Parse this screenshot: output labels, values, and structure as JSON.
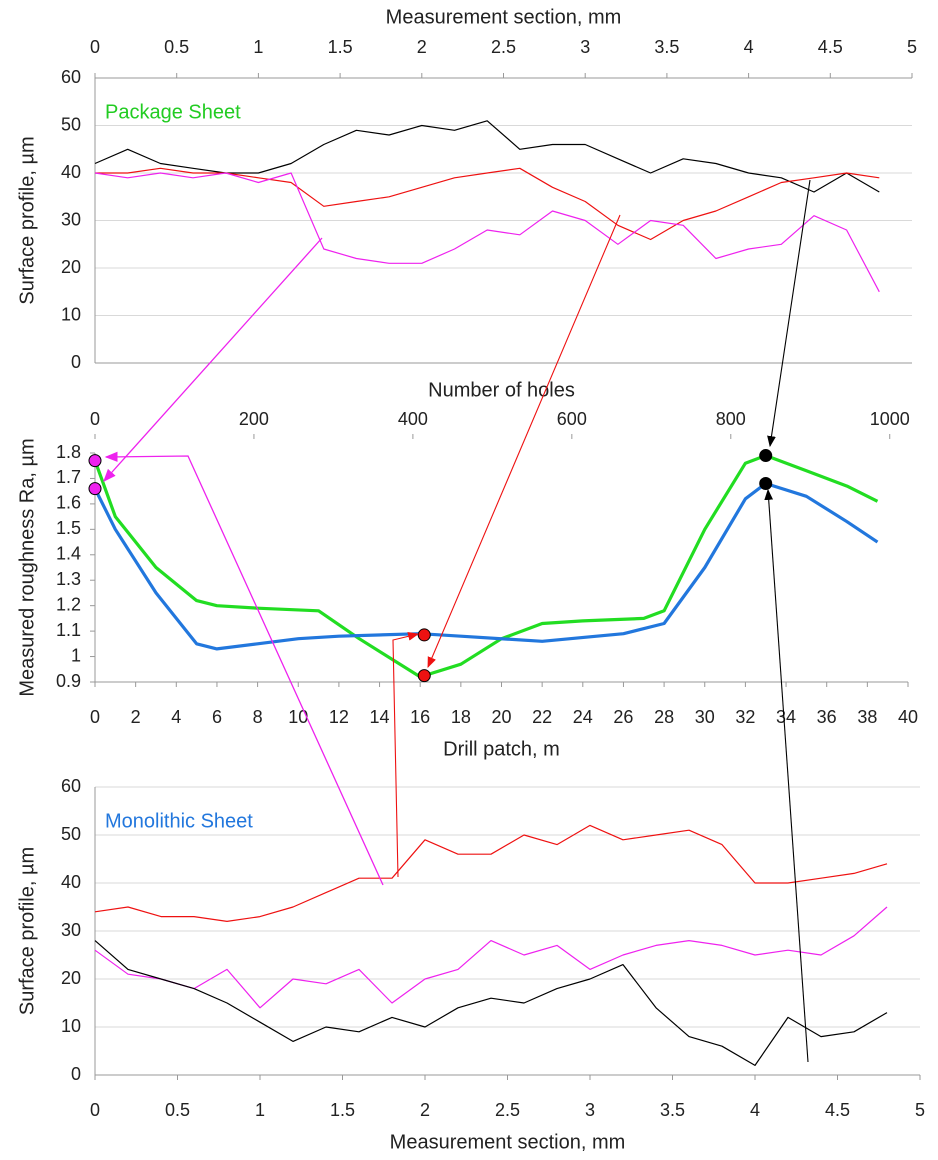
{
  "chart_data": [
    {
      "type": "line",
      "xlabel": "Measurement section, mm",
      "ylabel": "Surface profile, µm",
      "annotation": {
        "text": "Package Sheet",
        "color": "#22cc22"
      },
      "xlim": [
        0,
        5
      ],
      "xticks": [
        0,
        0.5,
        1,
        1.5,
        2,
        2.5,
        3,
        3.5,
        4,
        4.5,
        5
      ],
      "ylim": [
        0,
        60
      ],
      "yticks": [
        0,
        10,
        20,
        30,
        40,
        50,
        60
      ],
      "grid": true,
      "series": [
        {
          "color": "#000000",
          "x": [
            0,
            0.2,
            0.4,
            0.6,
            0.8,
            1,
            1.2,
            1.4,
            1.6,
            1.8,
            2,
            2.2,
            2.4,
            2.6,
            2.8,
            3,
            3.2,
            3.4,
            3.6,
            3.8,
            4,
            4.2,
            4.4,
            4.6,
            4.8
          ],
          "values": [
            42,
            45,
            42,
            41,
            40,
            40,
            42,
            46,
            49,
            48,
            50,
            49,
            51,
            45,
            46,
            46,
            43,
            40,
            43,
            42,
            40,
            39,
            36,
            40,
            36
          ]
        },
        {
          "color": "#ee1111",
          "x": [
            0,
            0.2,
            0.4,
            0.6,
            0.8,
            1,
            1.2,
            1.4,
            1.6,
            1.8,
            2,
            2.2,
            2.4,
            2.6,
            2.8,
            3,
            3.2,
            3.4,
            3.6,
            3.8,
            4,
            4.2,
            4.4,
            4.6,
            4.8
          ],
          "values": [
            40,
            40,
            41,
            40,
            40,
            39,
            38,
            33,
            34,
            35,
            37,
            39,
            40,
            41,
            37,
            34,
            29,
            26,
            30,
            32,
            35,
            38,
            39,
            40,
            39
          ]
        },
        {
          "color": "#ee22ee",
          "x": [
            0,
            0.2,
            0.4,
            0.6,
            0.8,
            1,
            1.2,
            1.4,
            1.6,
            1.8,
            2,
            2.2,
            2.4,
            2.6,
            2.8,
            3,
            3.2,
            3.4,
            3.6,
            3.8,
            4,
            4.2,
            4.4,
            4.6,
            4.8
          ],
          "values": [
            40,
            39,
            40,
            39,
            40,
            38,
            40,
            24,
            22,
            21,
            21,
            24,
            28,
            27,
            32,
            30,
            25,
            30,
            29,
            22,
            24,
            25,
            31,
            28,
            15
          ]
        }
      ]
    },
    {
      "type": "line",
      "xlabel": "Drill patch, m",
      "ylabel": "Measured roughness Ra, µm",
      "x2label": "Number of holes",
      "xlim": [
        0,
        40
      ],
      "xticks": [
        0,
        2,
        4,
        6,
        8,
        10,
        12,
        14,
        16,
        18,
        20,
        22,
        24,
        26,
        28,
        30,
        32,
        34,
        36,
        38,
        40
      ],
      "x2lim": [
        0,
        1023
      ],
      "x2ticks": [
        0,
        200,
        400,
        600,
        800,
        1000
      ],
      "ylim": [
        0.9,
        1.8
      ],
      "yticks": [
        0.9,
        1,
        1.1,
        1.2,
        1.3,
        1.4,
        1.5,
        1.6,
        1.7,
        1.8
      ],
      "grid": false,
      "series": [
        {
          "color": "#22dd22",
          "x": [
            0,
            1,
            3,
            5,
            6,
            8,
            11,
            13,
            16,
            18,
            20,
            22,
            24,
            27,
            28,
            30,
            32,
            33,
            35,
            37,
            38.5
          ],
          "values": [
            1.77,
            1.55,
            1.35,
            1.22,
            1.2,
            1.19,
            1.18,
            1.07,
            0.92,
            0.97,
            1.07,
            1.13,
            1.14,
            1.15,
            1.18,
            1.5,
            1.76,
            1.79,
            1.73,
            1.67,
            1.61
          ]
        },
        {
          "color": "#2277dd",
          "x": [
            0,
            1,
            3,
            5,
            6,
            8,
            10,
            12,
            16,
            18,
            22,
            26,
            28,
            30,
            32,
            33,
            35,
            37,
            38.5
          ],
          "values": [
            1.66,
            1.5,
            1.25,
            1.05,
            1.03,
            1.05,
            1.07,
            1.08,
            1.09,
            1.08,
            1.06,
            1.09,
            1.13,
            1.35,
            1.62,
            1.68,
            1.63,
            1.53,
            1.45
          ]
        }
      ],
      "markers": [
        {
          "x": 0,
          "y": 1.77,
          "color": "#ee22ee"
        },
        {
          "x": 0,
          "y": 1.66,
          "color": "#ee22ee"
        },
        {
          "x": 16.2,
          "y": 1.085,
          "color": "#ee1111"
        },
        {
          "x": 16.2,
          "y": 0.925,
          "color": "#ee1111"
        },
        {
          "x": 33,
          "y": 1.79,
          "color": "#000000"
        },
        {
          "x": 33,
          "y": 1.68,
          "color": "#000000"
        }
      ]
    },
    {
      "type": "line",
      "xlabel": "Measurement section, mm",
      "ylabel": "Surface profile, µm",
      "annotation": {
        "text": "Monolithic Sheet",
        "color": "#2277dd"
      },
      "xlim": [
        0,
        5
      ],
      "xticks": [
        0,
        0.5,
        1,
        1.5,
        2,
        2.5,
        3,
        3.5,
        4,
        4.5,
        5
      ],
      "ylim": [
        0,
        60
      ],
      "yticks": [
        0,
        10,
        20,
        30,
        40,
        50,
        60
      ],
      "grid": true,
      "series": [
        {
          "color": "#ee1111",
          "x": [
            0,
            0.2,
            0.4,
            0.6,
            0.8,
            1,
            1.2,
            1.4,
            1.6,
            1.8,
            2,
            2.2,
            2.4,
            2.6,
            2.8,
            3,
            3.2,
            3.4,
            3.6,
            3.8,
            4,
            4.2,
            4.4,
            4.6,
            4.8
          ],
          "values": [
            34,
            35,
            33,
            33,
            32,
            33,
            35,
            38,
            41,
            41,
            49,
            46,
            46,
            50,
            48,
            52,
            49,
            50,
            51,
            48,
            40,
            40,
            41,
            42,
            44
          ]
        },
        {
          "color": "#ee22ee",
          "x": [
            0,
            0.2,
            0.4,
            0.6,
            0.8,
            1,
            1.2,
            1.4,
            1.6,
            1.8,
            2,
            2.2,
            2.4,
            2.6,
            2.8,
            3,
            3.2,
            3.4,
            3.6,
            3.8,
            4,
            4.2,
            4.4,
            4.6,
            4.8
          ],
          "values": [
            26,
            21,
            20,
            18,
            22,
            14,
            20,
            19,
            22,
            15,
            20,
            22,
            28,
            25,
            27,
            22,
            25,
            27,
            28,
            27,
            25,
            26,
            25,
            29,
            35
          ]
        },
        {
          "color": "#000000",
          "x": [
            0,
            0.2,
            0.4,
            0.6,
            0.8,
            1,
            1.2,
            1.4,
            1.6,
            1.8,
            2,
            2.2,
            2.4,
            2.6,
            2.8,
            3,
            3.2,
            3.4,
            3.6,
            3.8,
            4,
            4.2,
            4.4,
            4.6,
            4.8
          ],
          "values": [
            28,
            22,
            20,
            18,
            15,
            11,
            7,
            10,
            9,
            12,
            10,
            14,
            16,
            15,
            18,
            20,
            23,
            14,
            8,
            6,
            2,
            12,
            8,
            9,
            13
          ]
        }
      ]
    }
  ]
}
